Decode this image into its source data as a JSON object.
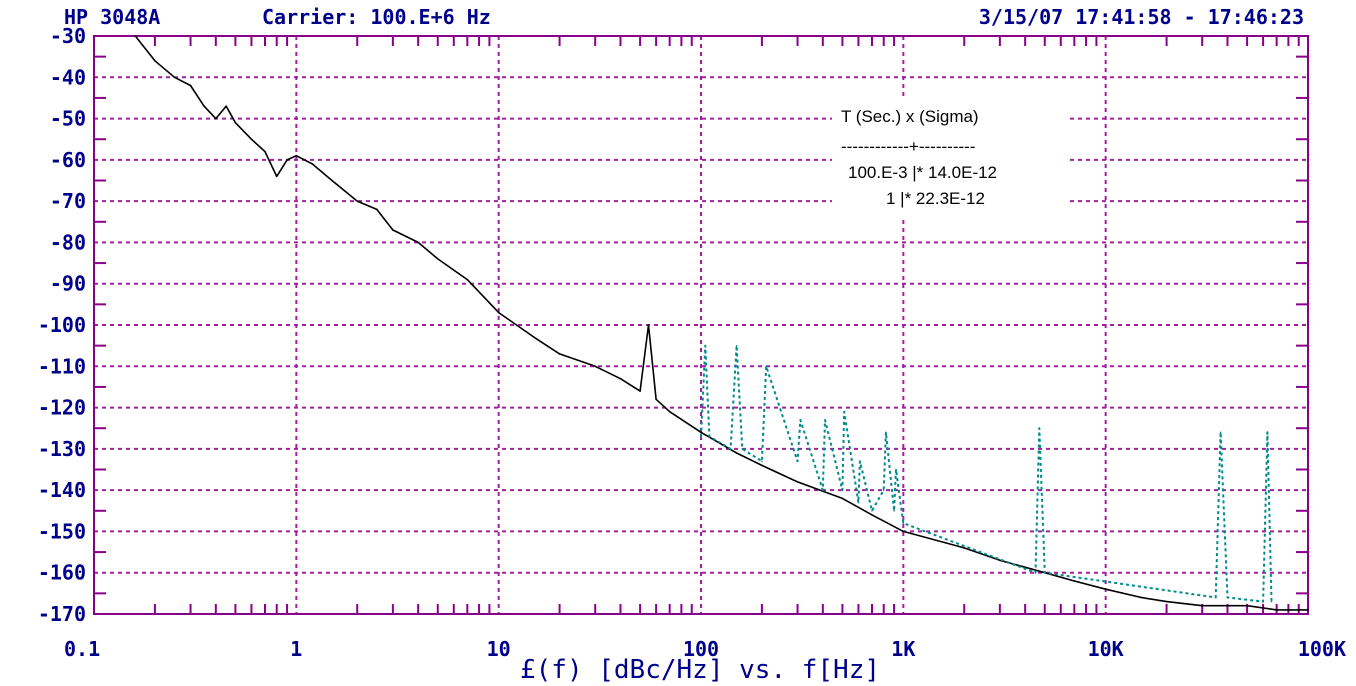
{
  "header": {
    "instrument": "HP 3048A",
    "carrier": "Carrier: 100.E+6 Hz",
    "datetime": "3/15/07  17:41:58 - 17:46:23"
  },
  "colors": {
    "axis_text": "#00008b",
    "frame": "#8b008b",
    "grid": "#a020a0",
    "trace_main": "#000000",
    "trace_spurs": "#008b8b"
  },
  "chart_data": {
    "type": "line",
    "title": "",
    "xlabel": "£(f) [dBc/Hz] vs. f[Hz]",
    "ylabel": "",
    "x_scale": "log",
    "xlim": [
      0.1,
      100000
    ],
    "ylim": [
      -170,
      -30
    ],
    "grid": true,
    "x_tick_labels": [
      "0.1",
      "1",
      "10",
      "100",
      "1K",
      "10K",
      "100K"
    ],
    "y_tick_labels": [
      "-30",
      "-40",
      "-50",
      "-60",
      "-70",
      "-80",
      "-90",
      "-100",
      "-110",
      "-120",
      "-130",
      "-140",
      "-150",
      "-160",
      "-170"
    ],
    "annotation": {
      "header": "T (Sec.)   x (Sigma)",
      "separator": "------------+----------",
      "rows": [
        "100.E-3 |*  14.0E-12",
        "1 |*  22.3E-12"
      ]
    },
    "series": [
      {
        "name": "",
        "style": "solid",
        "x": [
          0.16,
          0.2,
          0.25,
          0.3,
          0.35,
          0.4,
          0.45,
          0.5,
          0.6,
          0.7,
          0.8,
          0.9,
          1.0,
          1.2,
          1.5,
          2.0,
          2.5,
          3.0,
          4.0,
          5.0,
          7.0,
          10,
          15,
          20,
          30,
          40,
          50,
          55,
          60,
          70,
          100,
          150,
          200,
          300,
          500,
          700,
          1000,
          2000,
          3000,
          5000,
          7000,
          10000,
          15000,
          20000,
          30000,
          40000,
          50000,
          70000,
          100000
        ],
        "y": [
          -30,
          -36,
          -40,
          -42,
          -47,
          -50,
          -47,
          -51,
          -55,
          -58,
          -64,
          -60,
          -59,
          -61,
          -65,
          -70,
          -72,
          -77,
          -80,
          -84,
          -89,
          -97,
          -103,
          -107,
          -110,
          -113,
          -116,
          -100,
          -118,
          -121,
          -126,
          -131,
          -134,
          -138,
          -142,
          -146,
          -150,
          -154,
          -157,
          -160,
          -162,
          -164,
          -166,
          -167,
          -168,
          -168,
          -168,
          -169,
          -169
        ]
      },
      {
        "name": "",
        "style": "dotted",
        "x": [
          100,
          105,
          110,
          140,
          150,
          160,
          200,
          210,
          300,
          310,
          400,
          410,
          500,
          510,
          600,
          610,
          700,
          800,
          820,
          900,
          920,
          1000,
          4500,
          4700,
          5000,
          35000,
          37000,
          40000,
          60000,
          63000,
          66000
        ],
        "y": [
          -127,
          -105,
          -127,
          -130,
          -105,
          -130,
          -133,
          -110,
          -133,
          -123,
          -140,
          -123,
          -140,
          -121,
          -143,
          -133,
          -145,
          -140,
          -126,
          -145,
          -135,
          -148,
          -160,
          -125,
          -160,
          -166,
          -126,
          -166,
          -167,
          -126,
          -167
        ]
      }
    ]
  }
}
